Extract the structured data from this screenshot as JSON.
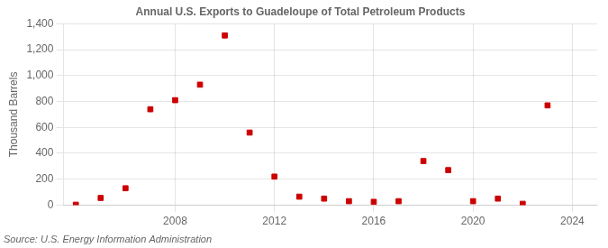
{
  "chart_data": {
    "type": "scatter",
    "title": "Annual U.S. Exports to Guadeloupe of Total Petroleum Products",
    "ylabel": "Thousand Barrels",
    "annotations": [
      "Source: U.S. Energy Information Administration"
    ],
    "x": [
      2004,
      2005,
      2006,
      2007,
      2008,
      2009,
      2010,
      2011,
      2012,
      2013,
      2014,
      2015,
      2016,
      2017,
      2018,
      2019,
      2020,
      2021,
      2022,
      2023
    ],
    "values": [
      3,
      55,
      130,
      740,
      810,
      930,
      1310,
      560,
      220,
      65,
      50,
      30,
      25,
      30,
      340,
      270,
      30,
      50,
      10,
      770
    ],
    "color": "#cc0000",
    "marker": "square",
    "xlim": [
      2003.5,
      2025
    ],
    "xticks": [
      2008,
      2012,
      2016,
      2020,
      2024
    ],
    "ylim": [
      0,
      1400
    ],
    "yticks": [
      0,
      200,
      400,
      600,
      800,
      {
        "value": 1000,
        "label": "1,000"
      },
      {
        "value": 1200,
        "label": "1,200"
      },
      {
        "value": 1400,
        "label": "1,400"
      }
    ],
    "grid": true
  }
}
